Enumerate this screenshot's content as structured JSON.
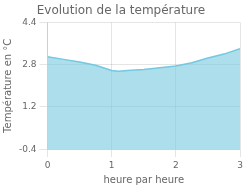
{
  "chart_data": {
    "type": "area",
    "title": "Evolution de la température",
    "xlabel": "heure par heure",
    "ylabel": "Température en °C",
    "x": [
      0,
      0.25,
      0.5,
      0.75,
      1.0,
      1.1,
      1.25,
      1.5,
      1.75,
      2.0,
      2.25,
      2.5,
      2.75,
      3.0
    ],
    "series": [
      {
        "color": "#74c8e0",
        "values": [
          3.1,
          3.0,
          2.9,
          2.78,
          2.58,
          2.55,
          2.58,
          2.62,
          2.68,
          2.75,
          2.87,
          3.05,
          3.2,
          3.4
        ]
      }
    ],
    "xlim": [
      0,
      3
    ],
    "ylim": [
      -0.4,
      4.4
    ],
    "xticks": [
      0,
      1,
      2,
      3
    ],
    "yticks": [
      -0.4,
      1.2,
      2.8,
      4.4
    ],
    "grid": true
  }
}
